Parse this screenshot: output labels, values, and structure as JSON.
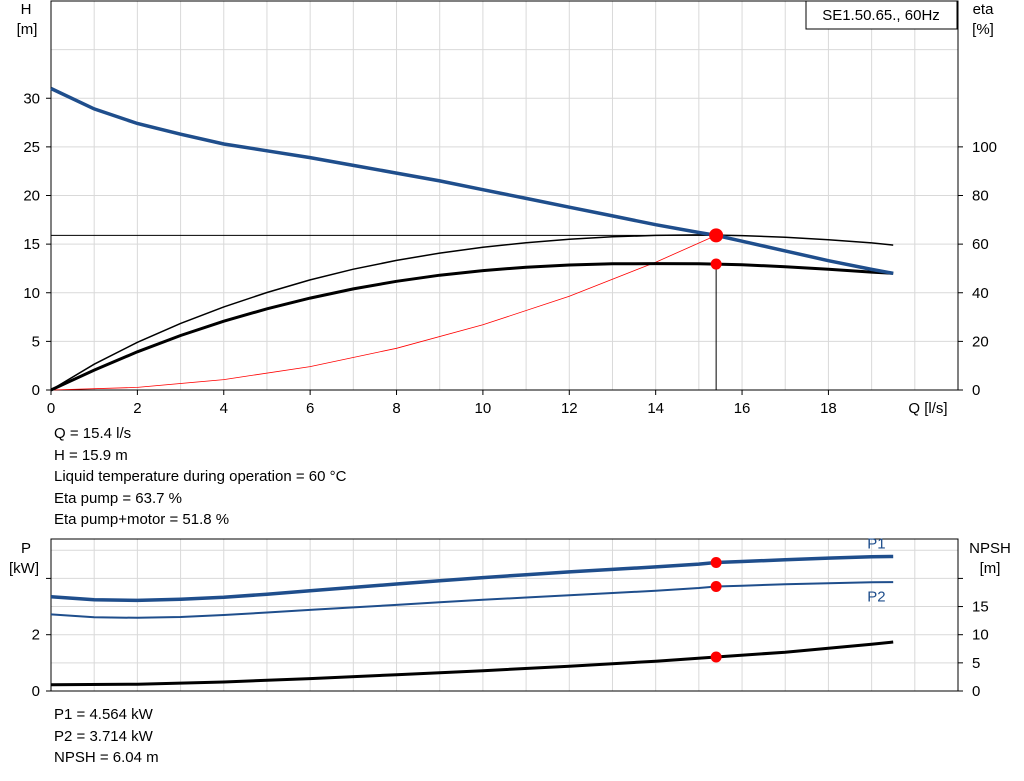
{
  "chart_data": [
    {
      "type": "line",
      "title": "SE1.50.65., 60Hz",
      "xlabel": "Q [l/s]",
      "ylabel": [
        "H",
        "[m]"
      ],
      "y2label": [
        "eta",
        "[%]"
      ],
      "xlim": [
        0,
        21
      ],
      "ylim": [
        0,
        40
      ],
      "y2lim": [
        0,
        160
      ],
      "xticks": [
        0,
        2,
        4,
        6,
        8,
        10,
        12,
        14,
        16,
        18
      ],
      "yticks": [
        0,
        5,
        10,
        15,
        20,
        25,
        30
      ],
      "y2ticks": [
        0,
        20,
        40,
        60,
        80,
        100
      ],
      "grid": true,
      "series": [
        {
          "axis": "H",
          "color": "#1f4e8c",
          "x": [
            0,
            1,
            2,
            3,
            4,
            5,
            6,
            7,
            8,
            9,
            10,
            11,
            12,
            13,
            14,
            15,
            15.4,
            16,
            17,
            18,
            19,
            19.5
          ],
          "y": [
            31.0,
            28.9,
            27.4,
            26.3,
            25.3,
            24.6,
            23.9,
            23.1,
            22.3,
            21.5,
            20.6,
            19.7,
            18.8,
            17.9,
            17.0,
            16.2,
            15.9,
            15.3,
            14.3,
            13.3,
            12.4,
            12.0
          ]
        },
        {
          "axis": "eta",
          "color": "#000000",
          "x": [
            0,
            1,
            2,
            3,
            4,
            5,
            6,
            7,
            8,
            9,
            10,
            11,
            12,
            13,
            14,
            15,
            15.4,
            16,
            17,
            18,
            19,
            19.5
          ],
          "y": [
            0,
            10.6,
            19.6,
            27.4,
            34.2,
            40.1,
            45.3,
            49.7,
            53.3,
            56.3,
            58.7,
            60.6,
            62.0,
            63.0,
            63.6,
            63.8,
            63.7,
            63.5,
            62.8,
            61.8,
            60.5,
            59.6
          ]
        },
        {
          "axis": "eta",
          "color": "#000000",
          "x": [
            0,
            1,
            2,
            3,
            4,
            5,
            6,
            7,
            8,
            9,
            10,
            11,
            12,
            13,
            14,
            15,
            15.4,
            16,
            17,
            18,
            19,
            19.5
          ],
          "y": [
            0,
            8.2,
            15.7,
            22.4,
            28.3,
            33.4,
            37.8,
            41.6,
            44.7,
            47.2,
            49.1,
            50.5,
            51.4,
            51.9,
            52.0,
            51.9,
            51.8,
            51.5,
            50.7,
            49.7,
            48.5,
            48.0
          ]
        },
        {
          "axis": "H",
          "color": "#ff0000",
          "x": [
            0,
            2,
            4,
            6,
            8,
            10,
            12,
            14,
            15.4
          ],
          "y": [
            0,
            0.27,
            1.07,
            2.41,
            4.29,
            6.7,
            9.65,
            13.14,
            15.9
          ]
        }
      ],
      "duty_point": {
        "q": 15.4,
        "h": 15.9,
        "eta_pump": 63.7,
        "eta_total": 51.8
      }
    },
    {
      "type": "line",
      "ylabel": [
        "P",
        "[kW]"
      ],
      "y2label": [
        "NPSH",
        "[m]"
      ],
      "xlim": [
        0,
        21
      ],
      "ylim": [
        0,
        5.4
      ],
      "y2lim": [
        0,
        27
      ],
      "yticks": [
        0,
        2
      ],
      "y2ticks": [
        0,
        5,
        10,
        15
      ],
      "grid": true,
      "series": [
        {
          "name": "P1",
          "color": "#1f4e8c",
          "axis": "P",
          "x": [
            0,
            1,
            2,
            3,
            4,
            5,
            6,
            7,
            8,
            9,
            10,
            11,
            12,
            13,
            14,
            15,
            15.4,
            16,
            17,
            18,
            19,
            19.5
          ],
          "y": [
            3.35,
            3.24,
            3.22,
            3.26,
            3.33,
            3.44,
            3.56,
            3.68,
            3.8,
            3.92,
            4.03,
            4.13,
            4.23,
            4.32,
            4.41,
            4.51,
            4.564,
            4.6,
            4.66,
            4.72,
            4.77,
            4.78
          ]
        },
        {
          "name": "P2",
          "color": "#1f4e8c",
          "axis": "P",
          "x": [
            0,
            1,
            2,
            3,
            4,
            5,
            6,
            7,
            8,
            9,
            10,
            11,
            12,
            13,
            14,
            15,
            15.4,
            16,
            17,
            18,
            19,
            19.5
          ],
          "y": [
            2.72,
            2.62,
            2.6,
            2.63,
            2.7,
            2.79,
            2.88,
            2.97,
            3.06,
            3.15,
            3.24,
            3.32,
            3.4,
            3.48,
            3.56,
            3.66,
            3.714,
            3.74,
            3.79,
            3.83,
            3.86,
            3.87
          ]
        },
        {
          "axis": "NPSH",
          "color": "#000000",
          "x": [
            0,
            2,
            4,
            6,
            8,
            10,
            12,
            14,
            15.4,
            17,
            18,
            19,
            19.5
          ],
          "y": [
            1.1,
            1.2,
            1.6,
            2.2,
            2.9,
            3.6,
            4.4,
            5.3,
            6.04,
            6.9,
            7.6,
            8.3,
            8.7
          ]
        }
      ]
    }
  ],
  "info_top": [
    "Q = 15.4 l/s",
    "H = 15.9 m",
    "Liquid temperature during operation = 60 °C",
    "Eta pump = 63.7 %",
    "Eta pump+motor = 51.8 %"
  ],
  "info_bottom": [
    "P1 = 4.564 kW",
    "P2 = 3.714 kW",
    "NPSH = 6.04 m"
  ],
  "colors": {
    "curve_blue": "#1f4e8c",
    "duty_red": "#ff0000",
    "grid": "#d9d9d9"
  }
}
